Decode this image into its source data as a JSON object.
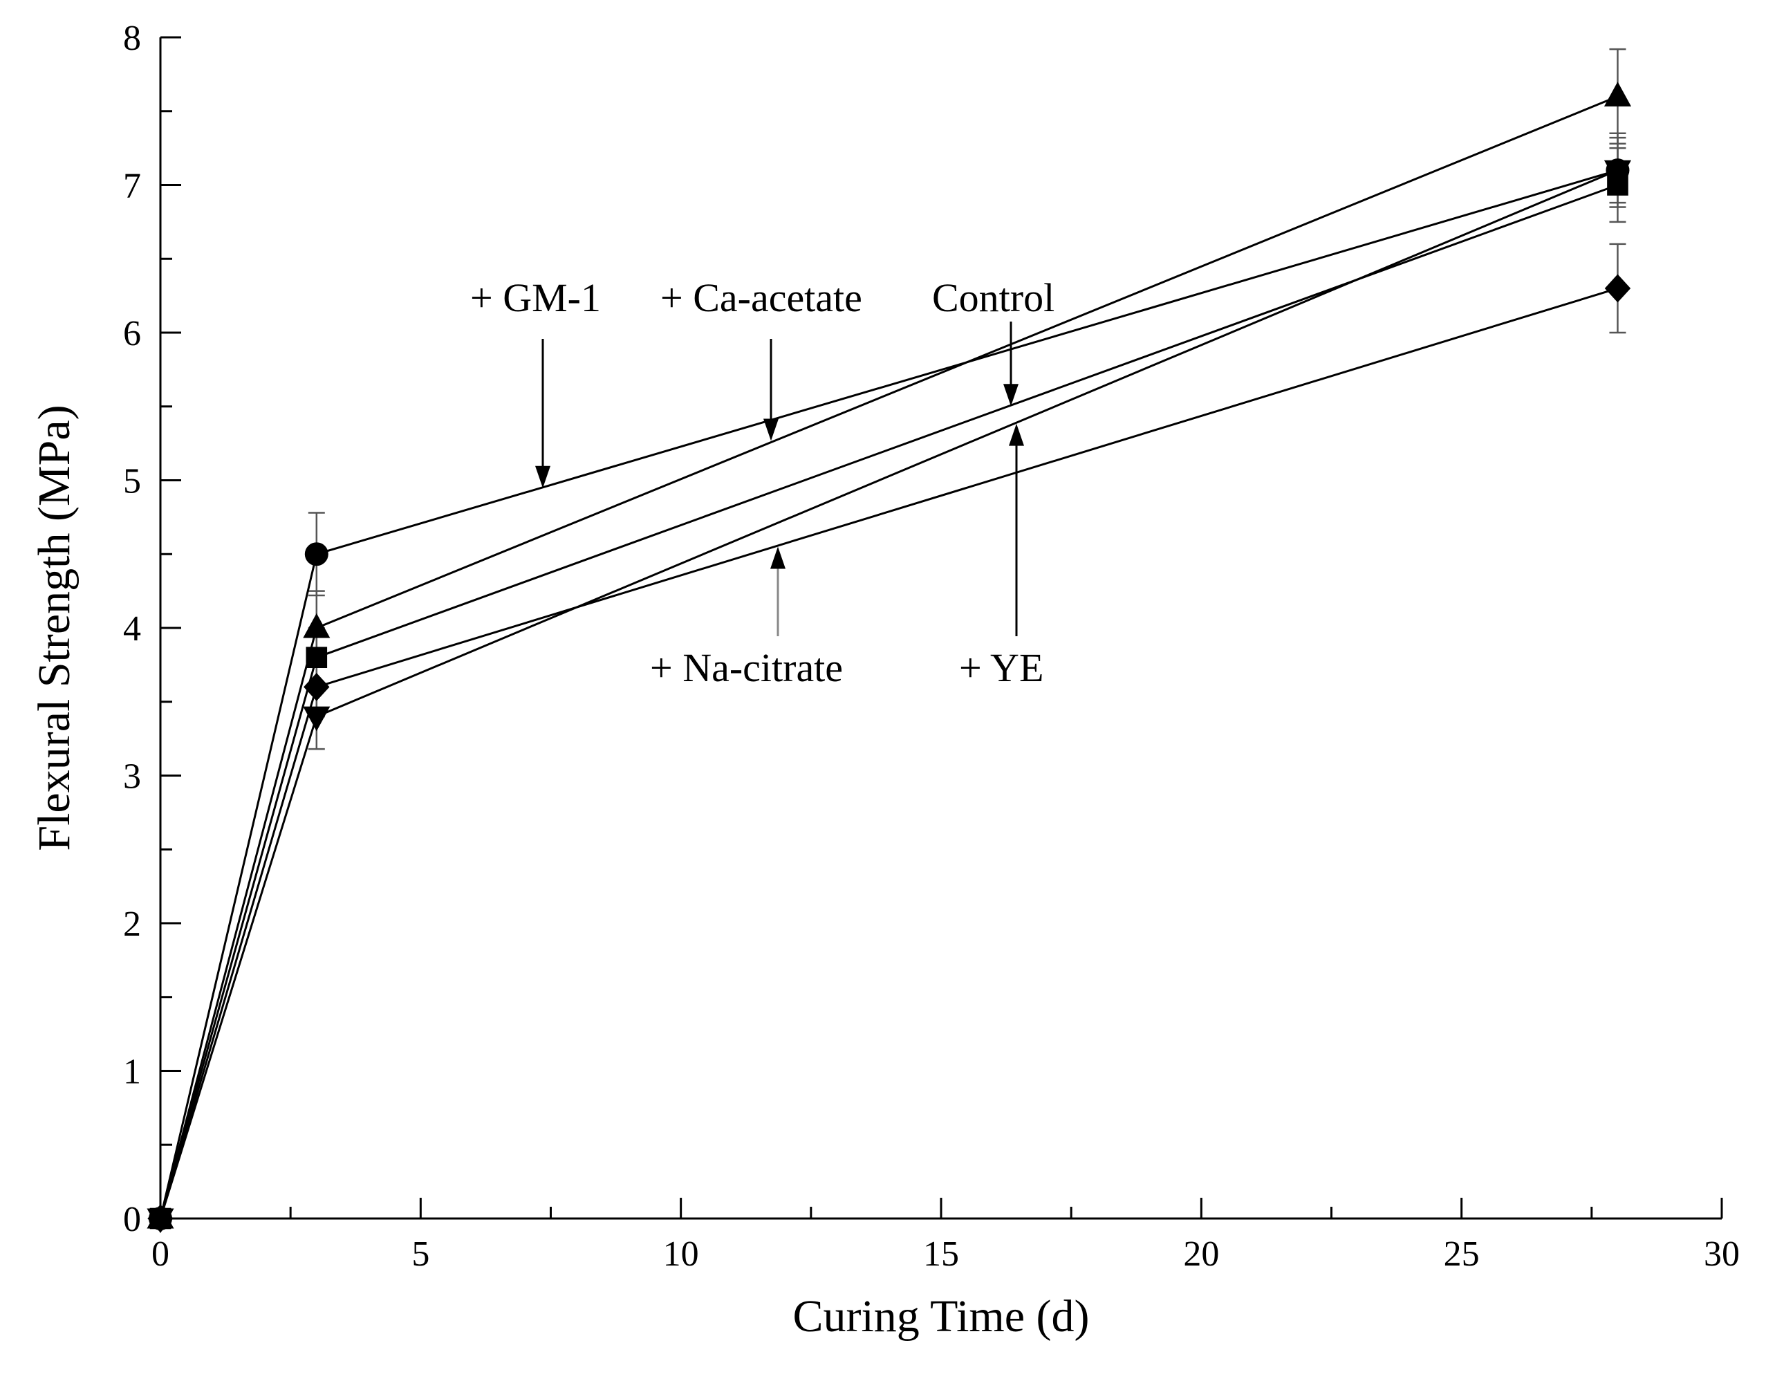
{
  "chart_data": {
    "type": "line",
    "title": "",
    "xlabel": "Curing Time (d)",
    "ylabel": "Flexural Strength (MPa)",
    "xlim": [
      0,
      30
    ],
    "ylim": [
      0,
      8
    ],
    "x_ticks": [
      0,
      5,
      10,
      15,
      20,
      25,
      30
    ],
    "y_ticks": [
      0,
      1,
      2,
      3,
      4,
      5,
      6,
      7,
      8
    ],
    "grid": false,
    "x": [
      0,
      3,
      28
    ],
    "series": [
      {
        "name": "+ GM-1",
        "marker": "circle",
        "values": [
          0,
          4.5,
          7.1
        ],
        "errors": [
          0,
          0.28,
          0.22
        ]
      },
      {
        "name": "+ Ca-acetate",
        "marker": "triangle-up",
        "values": [
          0,
          4.0,
          7.6
        ],
        "errors": [
          0,
          0.25,
          0.32
        ]
      },
      {
        "name": "Control",
        "marker": "square",
        "values": [
          0,
          3.8,
          7.0
        ],
        "errors": [
          0,
          0.2,
          0.25
        ]
      },
      {
        "name": "+ Na-citrate",
        "marker": "diamond",
        "values": [
          0,
          3.6,
          6.3
        ],
        "errors": [
          0,
          0.2,
          0.3
        ]
      },
      {
        "name": "+ YE",
        "marker": "triangle-down",
        "values": [
          0,
          3.4,
          7.1
        ],
        "errors": [
          0,
          0.22,
          0.25
        ]
      }
    ],
    "annotations": [
      {
        "text": "+ GM-1",
        "series": "+ GM-1",
        "arrow_to_x": 7.3,
        "direction": "down"
      },
      {
        "text": "+ Ca-acetate",
        "series": "+ Ca-acetate",
        "arrow_to_x": 11.8,
        "direction": "down"
      },
      {
        "text": "Control",
        "series": "Control",
        "arrow_to_x": 16.3,
        "direction": "down"
      },
      {
        "text": "+ Na-citrate",
        "series": "+ Na-citrate",
        "arrow_to_x": 11.8,
        "direction": "up"
      },
      {
        "text": "+ YE",
        "series": "+ YE",
        "arrow_to_x": 16.4,
        "direction": "up"
      }
    ]
  }
}
